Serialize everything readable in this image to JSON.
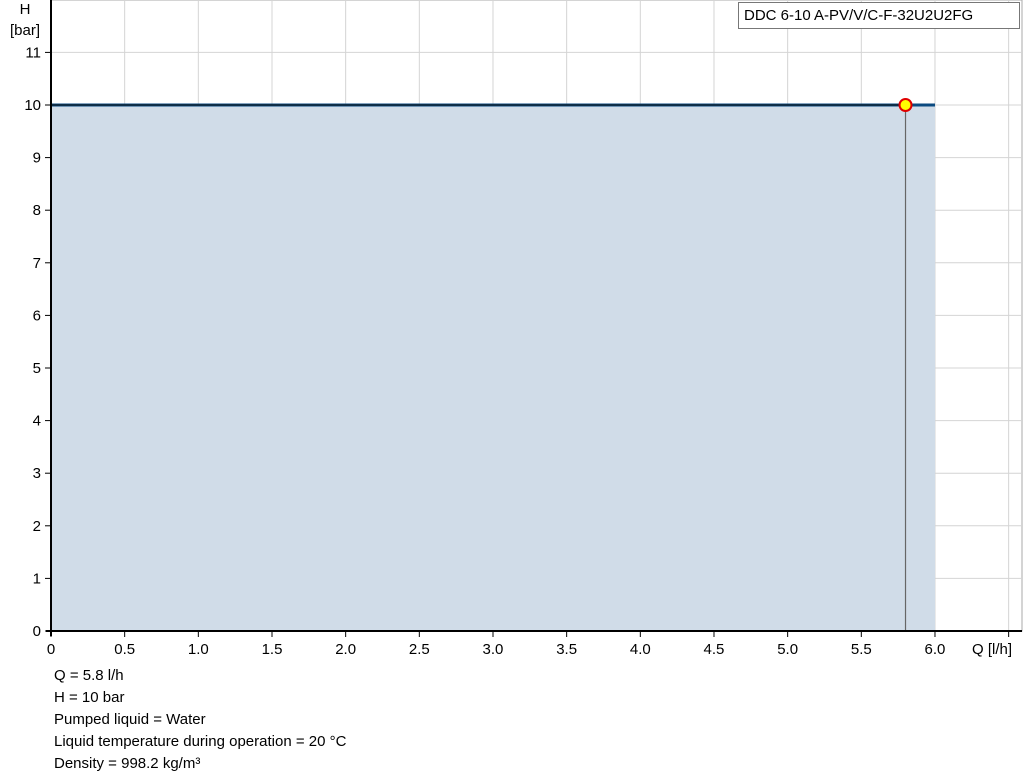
{
  "chart_data": {
    "type": "area",
    "title": "DDC 6-10 A-PV/V/C-F-32U2U2FG",
    "xlabel": "Q [l/h]",
    "ylabel_line1": "H",
    "ylabel_line2": "[bar]",
    "xlim": [
      0,
      6.6
    ],
    "ylim": [
      0,
      12
    ],
    "grid": true,
    "x_ticks": [
      "0",
      "0.5",
      "1.0",
      "1.5",
      "2.0",
      "2.5",
      "3.0",
      "3.5",
      "4.0",
      "4.5",
      "5.0",
      "5.5",
      "6.0"
    ],
    "x_tick_values": [
      0,
      0.5,
      1,
      1.5,
      2,
      2.5,
      3,
      3.5,
      4,
      4.5,
      5,
      5.5,
      6
    ],
    "y_ticks": [
      "0",
      "1",
      "2",
      "3",
      "4",
      "5",
      "6",
      "7",
      "8",
      "9",
      "10",
      "11"
    ],
    "y_tick_values": [
      0,
      1,
      2,
      3,
      4,
      5,
      6,
      7,
      8,
      9,
      10,
      11
    ],
    "series": [
      {
        "x": [
          0,
          6.0
        ],
        "y": [
          10,
          10
        ],
        "color": "#0b4a80",
        "fill": "#d0dce8"
      }
    ],
    "duty_point": {
      "x": 5.8,
      "y": 10,
      "color": "#ffff00",
      "stroke": "#e00000"
    }
  },
  "info": [
    "Q = 5.8 l/h",
    "H = 10 bar",
    "Pumped liquid = Water",
    "Liquid temperature during operation = 20 °C",
    "Density = 998.2 kg/m³"
  ]
}
